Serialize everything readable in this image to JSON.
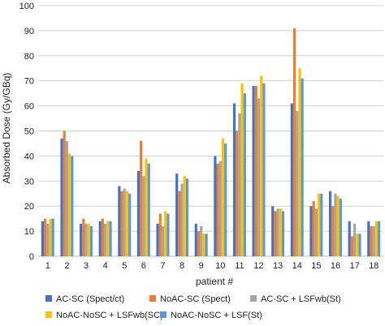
{
  "chart_data": {
    "type": "bar",
    "title": "",
    "xlabel": "patient #",
    "ylabel": "Absorbed Dose (Gy/GBq)",
    "ylim": [
      0,
      100
    ],
    "yticks": [
      0,
      10,
      20,
      30,
      40,
      50,
      60,
      70,
      80,
      90,
      100
    ],
    "grid": "horizontal",
    "legend_position": "bottom",
    "categories": [
      "1",
      "2",
      "3",
      "4",
      "5",
      "6",
      "7",
      "8",
      "9",
      "10",
      "11",
      "12",
      "13",
      "14",
      "15",
      "16",
      "17",
      "18"
    ],
    "series": [
      {
        "name": "AC-SC (Spect/ct)",
        "color": "#4472C4",
        "values": [
          14,
          47,
          13,
          14,
          28,
          34,
          13,
          33,
          13,
          40,
          61,
          68,
          20,
          61,
          20,
          26,
          14,
          14
        ]
      },
      {
        "name": "NoAC-SC (Spect)",
        "color": "#ED7D31",
        "values": [
          15,
          50,
          15,
          15,
          26,
          46,
          17,
          26,
          10,
          37,
          50,
          68,
          18,
          91,
          22,
          20,
          8,
          12
        ]
      },
      {
        "name": "AC-SC + LSFwb(St)",
        "color": "#A5A5A5",
        "values": [
          13,
          46,
          13,
          13,
          27,
          32,
          12,
          29,
          12,
          38,
          57,
          63,
          19,
          58,
          19,
          25,
          13,
          12
        ]
      },
      {
        "name": "NoAC-NoSC + LSFwb(SC)",
        "color": "#FFC000",
        "values": [
          15,
          41,
          13,
          14,
          26,
          39,
          18,
          32,
          9,
          47,
          69,
          72,
          19,
          75,
          25,
          24,
          9,
          14
        ]
      },
      {
        "name": "NoAC-NoSC + LSF(St)",
        "color": "#5B9BD5",
        "values": [
          15,
          40,
          12,
          14,
          25,
          37,
          17,
          31,
          9,
          45,
          65,
          69,
          18,
          71,
          25,
          23,
          9,
          14
        ]
      }
    ]
  }
}
